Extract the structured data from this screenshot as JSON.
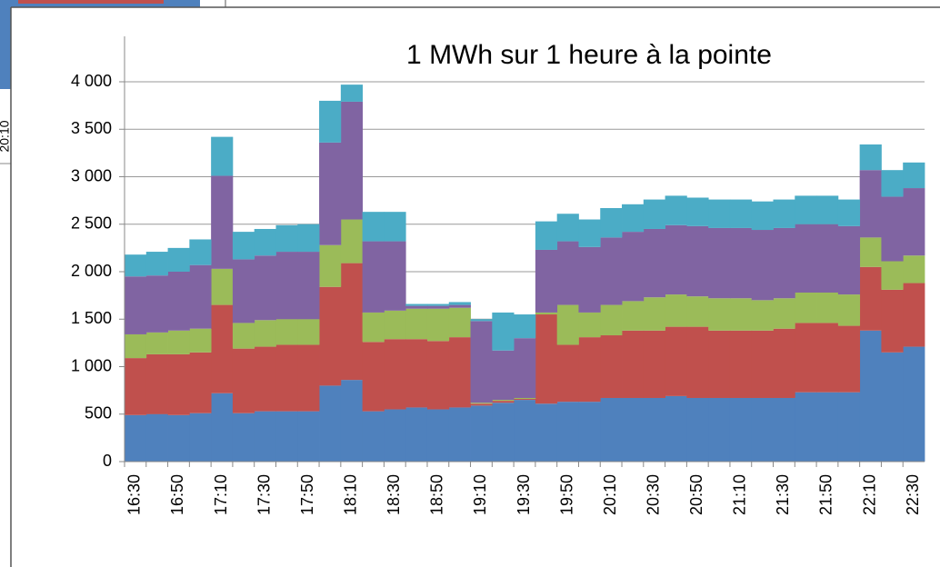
{
  "fragment": {
    "label": "20:10"
  },
  "chart_data": {
    "type": "stacked_area_step",
    "title": "1 MWh sur 1 heure à la pointe",
    "categories": [
      "16:30",
      null,
      "16:50",
      null,
      "17:10",
      null,
      "17:30",
      null,
      "17:50",
      null,
      "18:10",
      null,
      "18:30",
      null,
      "18:50",
      null,
      "19:10",
      null,
      "19:30",
      null,
      "19:50",
      null,
      "20:10",
      null,
      "20:30",
      null,
      "20:50",
      null,
      "21:10",
      null,
      "21:30",
      null,
      "21:50",
      null,
      "22:10",
      null,
      "22:30"
    ],
    "ylim": [
      0,
      4000
    ],
    "yticks": [
      0,
      {
        "value": 500,
        "label": "500"
      },
      {
        "value": 1000,
        "label": "1 000"
      },
      {
        "value": 1500,
        "label": "1 500"
      },
      {
        "value": 2000,
        "label": "2 000"
      },
      {
        "value": 2500,
        "label": "2 500"
      },
      {
        "value": 3000,
        "label": "3 000"
      },
      {
        "value": 3500,
        "label": "3 500"
      },
      {
        "value": 4000,
        "label": "4 000"
      }
    ],
    "grid": true,
    "series": [
      {
        "color": "#4f81bd",
        "values": [
          490,
          500,
          490,
          510,
          720,
          510,
          530,
          530,
          530,
          800,
          860,
          530,
          550,
          570,
          550,
          570,
          590,
          620,
          650,
          610,
          630,
          630,
          670,
          670,
          670,
          690,
          670,
          670,
          670,
          670,
          670,
          730,
          730,
          730,
          1380,
          1150,
          1210
        ]
      },
      {
        "color": "#c0504d",
        "values": [
          600,
          630,
          640,
          640,
          930,
          680,
          680,
          700,
          700,
          1040,
          1230,
          730,
          740,
          720,
          720,
          740,
          20,
          20,
          10,
          940,
          600,
          680,
          660,
          710,
          710,
          730,
          750,
          710,
          710,
          710,
          730,
          730,
          730,
          700,
          670,
          660,
          670
        ]
      },
      {
        "color": "#9bbb59",
        "values": [
          250,
          230,
          250,
          250,
          380,
          270,
          280,
          270,
          270,
          440,
          460,
          310,
          300,
          320,
          340,
          310,
          10,
          10,
          10,
          20,
          420,
          260,
          320,
          310,
          350,
          340,
          320,
          340,
          340,
          320,
          320,
          320,
          320,
          330,
          310,
          300,
          290
        ]
      },
      {
        "color": "#8064a2",
        "values": [
          610,
          600,
          620,
          670,
          980,
          670,
          680,
          710,
          710,
          1080,
          1240,
          750,
          730,
          30,
          30,
          30,
          860,
          520,
          630,
          660,
          670,
          690,
          710,
          730,
          720,
          730,
          740,
          740,
          740,
          740,
          740,
          720,
          720,
          720,
          710,
          680,
          710
        ]
      },
      {
        "color": "#4bacc6",
        "values": [
          230,
          250,
          250,
          270,
          410,
          290,
          280,
          280,
          290,
          440,
          180,
          310,
          310,
          20,
          20,
          30,
          20,
          400,
          250,
          300,
          290,
          290,
          310,
          290,
          310,
          310,
          300,
          300,
          300,
          300,
          300,
          300,
          300,
          280,
          270,
          280,
          270
        ]
      }
    ]
  }
}
